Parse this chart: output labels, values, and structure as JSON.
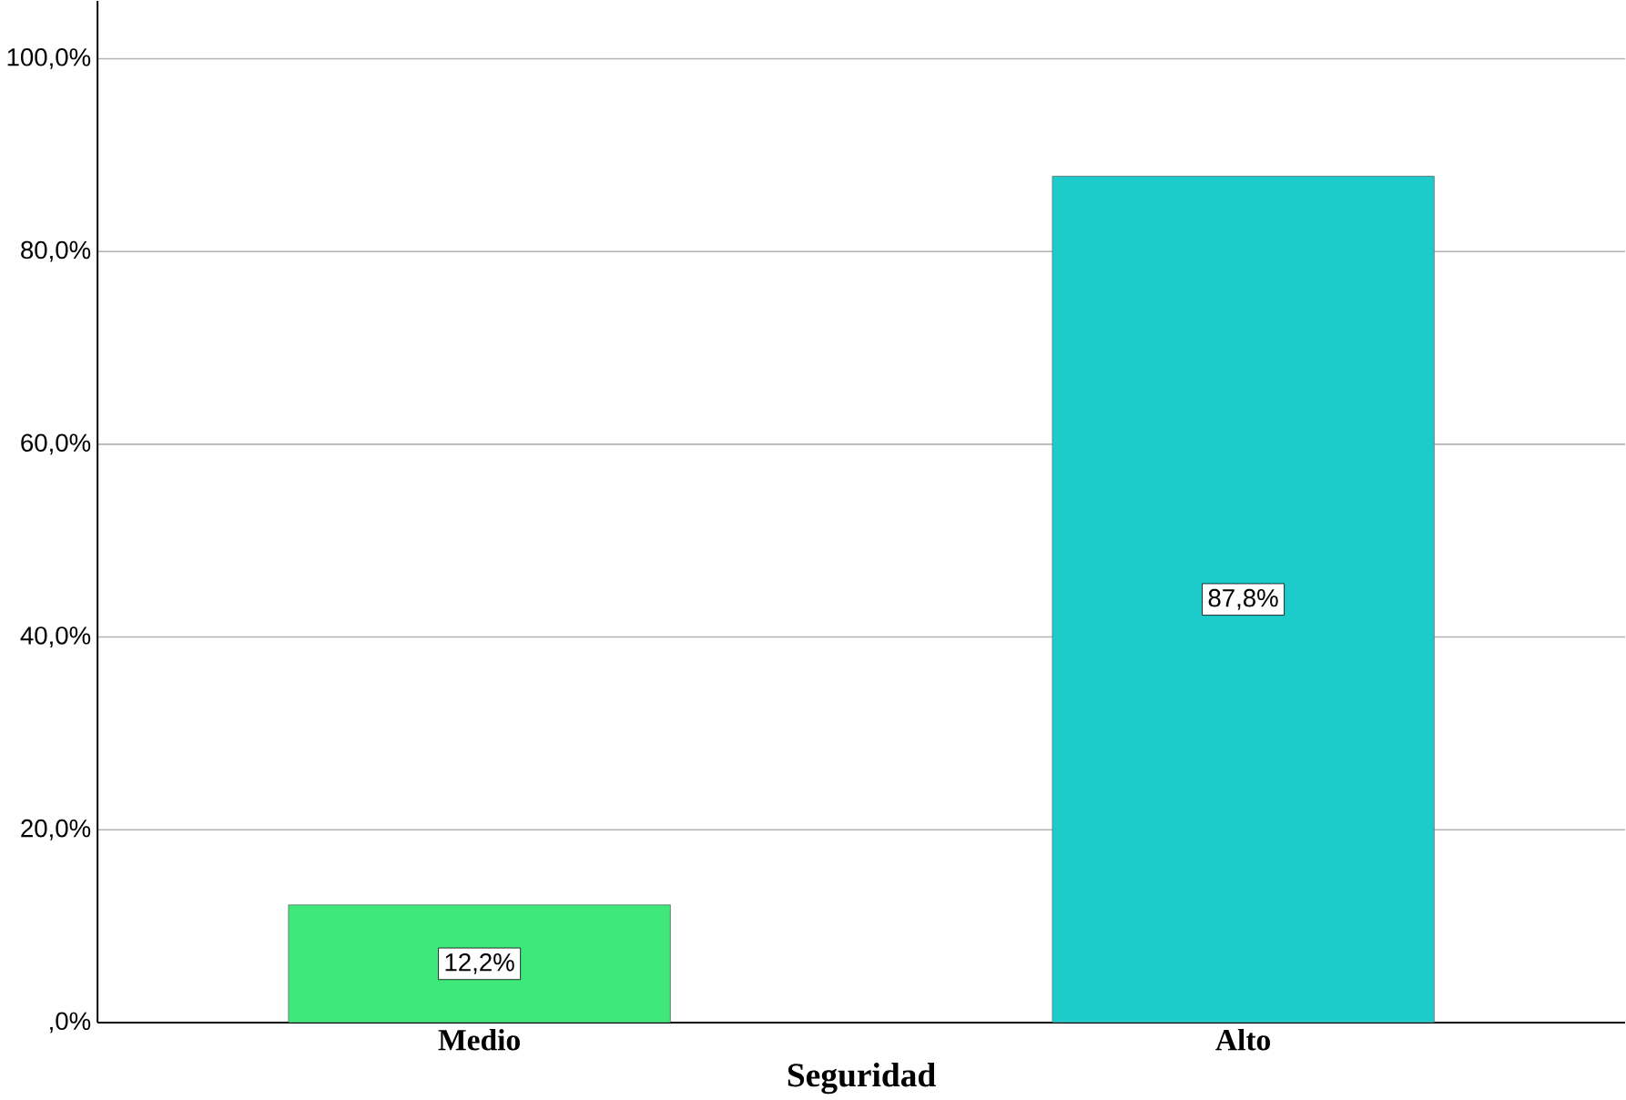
{
  "chart_data": {
    "type": "bar",
    "xlabel": "Seguridad",
    "categories": [
      "Medio",
      "Alto"
    ],
    "values": [
      12.2,
      87.8
    ],
    "colors": [
      "#3fe87a",
      "#1ecbcb"
    ],
    "value_labels": [
      "12,2%",
      "87,8%"
    ],
    "ylim": [
      0,
      106
    ],
    "yticks": [
      {
        "value": 0,
        "label": ",0%"
      },
      {
        "value": 20,
        "label": "20,0%"
      },
      {
        "value": 40,
        "label": "40,0%"
      },
      {
        "value": 60,
        "label": "60,0%"
      },
      {
        "value": 80,
        "label": "80,0%"
      },
      {
        "value": 100,
        "label": "100,0%"
      }
    ],
    "grid": "y"
  }
}
